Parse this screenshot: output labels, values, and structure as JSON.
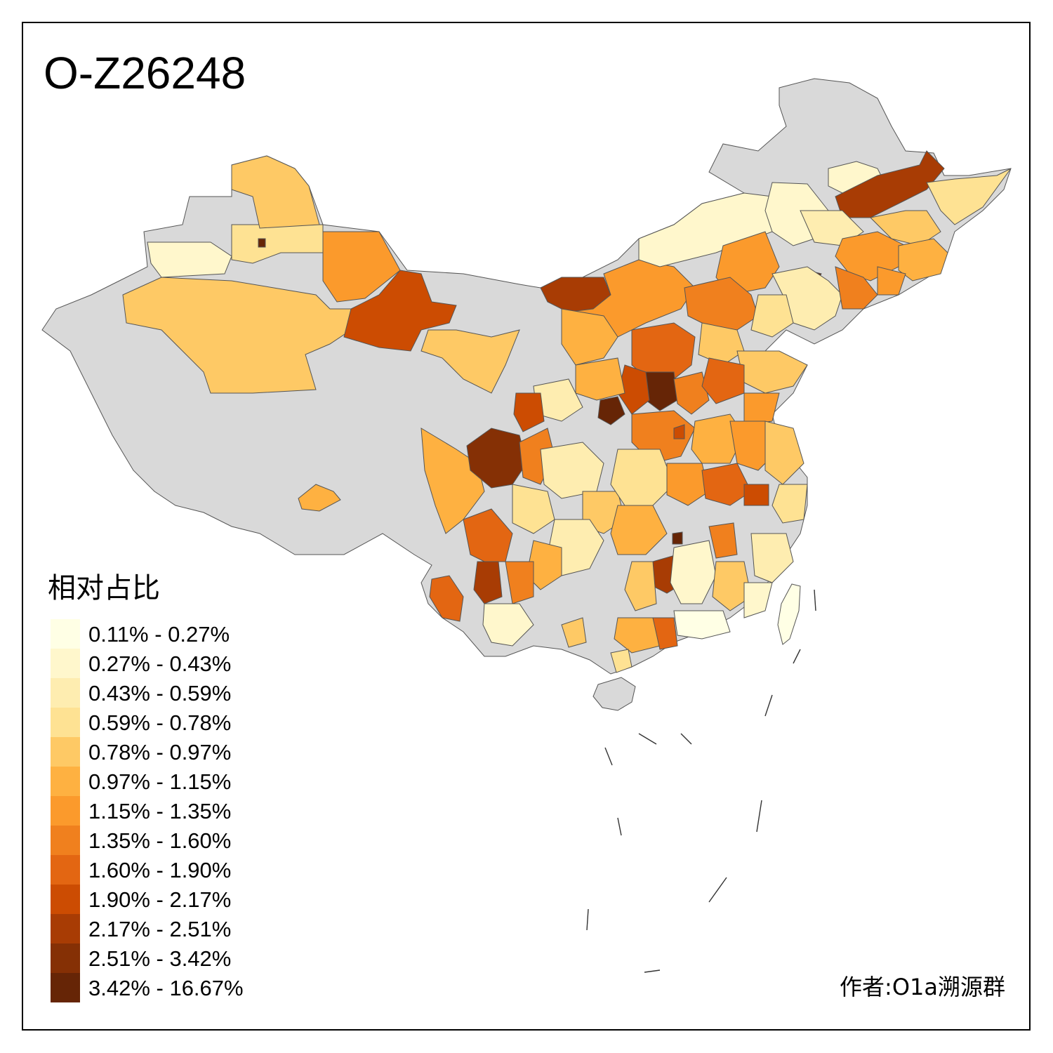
{
  "title": "O-Z26248",
  "legend": {
    "title": "相对占比",
    "items": [
      {
        "label": "0.11% - 0.27%",
        "color": "#FFFFE5"
      },
      {
        "label": "0.27% - 0.43%",
        "color": "#FFF7CC"
      },
      {
        "label": "0.43% - 0.59%",
        "color": "#FEEDB0"
      },
      {
        "label": "0.59% - 0.78%",
        "color": "#FEE293"
      },
      {
        "label": "0.78% - 0.97%",
        "color": "#FEC965"
      },
      {
        "label": "0.97% - 1.15%",
        "color": "#FEB141"
      },
      {
        "label": "1.15% - 1.35%",
        "color": "#FB9A2C"
      },
      {
        "label": "1.35% - 1.60%",
        "color": "#F0801E"
      },
      {
        "label": "1.60% - 1.90%",
        "color": "#E36612"
      },
      {
        "label": "1.90% - 2.17%",
        "color": "#CC4C02"
      },
      {
        "label": "2.17% - 2.51%",
        "color": "#A83C04"
      },
      {
        "label": "2.51% - 3.42%",
        "color": "#853005"
      },
      {
        "label": "3.42% - 16.67%",
        "color": "#662506"
      }
    ]
  },
  "no_data_color": "#D9D9D9",
  "author": "作者:O1a溯源群"
}
